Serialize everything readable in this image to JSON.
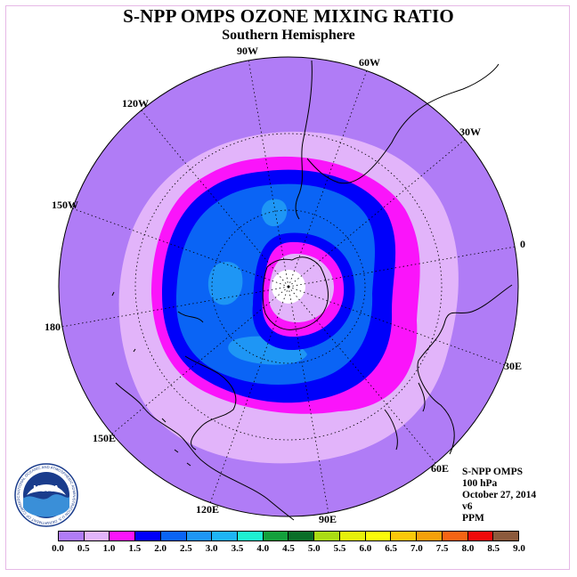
{
  "title": "S-NPP OMPS OZONE MIXING RATIO",
  "subtitle": "Southern Hemisphere",
  "longitude_labels": [
    "90W",
    "60W",
    "30W",
    "0",
    "30E",
    "60E",
    "90E",
    "120E",
    "150E",
    "180",
    "150W",
    "120W"
  ],
  "info": {
    "instrument": "S-NPP OMPS",
    "pressure": "100 hPa",
    "date": "October 27, 2014",
    "version": "v6",
    "units": "PPM"
  },
  "colorbar": {
    "ticks": [
      "0.0",
      "0.5",
      "1.0",
      "1.5",
      "2.0",
      "2.5",
      "3.0",
      "3.5",
      "4.0",
      "4.5",
      "5.0",
      "5.5",
      "6.0",
      "6.5",
      "7.0",
      "7.5",
      "8.0",
      "8.5",
      "9.0"
    ],
    "colors": [
      "#b07cf6",
      "#e2b4fa",
      "#fa14fa",
      "#0000fa",
      "#0a64f5",
      "#1e96f5",
      "#1eb4f5",
      "#1ef0d2",
      "#14a03c",
      "#0a6e28",
      "#aadc14",
      "#e6f00a",
      "#fafa0a",
      "#fac80a",
      "#f5a00a",
      "#f56414",
      "#f00a0a",
      "#8c5a3c"
    ]
  },
  "ozone_levels": [
    {
      "range": "0.0-0.5",
      "color": "#b07cf6"
    },
    {
      "range": "0.5-1.0",
      "color": "#e2b4fa"
    },
    {
      "range": "1.0-1.5",
      "color": "#fa14fa"
    },
    {
      "range": "1.5-2.0",
      "color": "#0000fa"
    },
    {
      "range": "2.0-2.5",
      "color": "#0a64f5"
    },
    {
      "range": "2.5-3.0",
      "color": "#1e96f5"
    }
  ],
  "logo": {
    "text": "NOAA",
    "ring_text": "NATIONAL OCEANIC AND ATMOSPHERIC ADMINISTRATION U.S. DEPARTMENT OF COMMERCE"
  }
}
